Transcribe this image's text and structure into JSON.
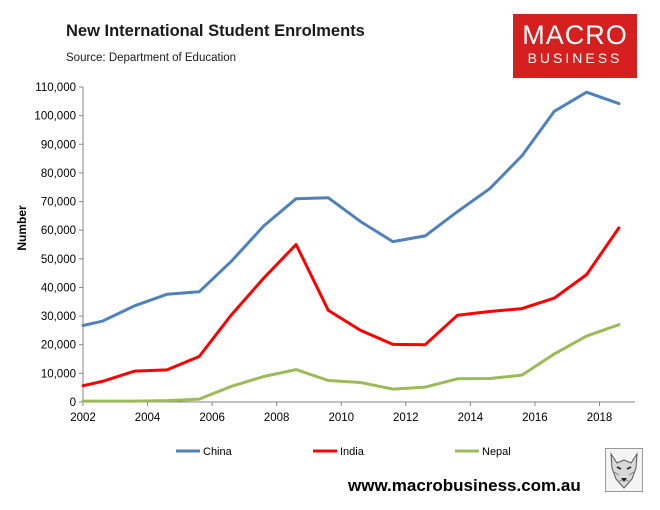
{
  "header": {
    "title": "New International Student Enrolments",
    "source": "Source: Department of Education"
  },
  "logo": {
    "line1": "MACRO",
    "line2": "BUSINESS",
    "color": "#d61f1f"
  },
  "footer": {
    "website": "www.macrobusiness.com.au"
  },
  "chart_data": {
    "type": "line",
    "title": "New International Student Enrolments",
    "xlabel": "",
    "ylabel": "Number",
    "xlim": [
      2002,
      2019.1
    ],
    "ylim": [
      0,
      110000
    ],
    "grid": false,
    "legend_position": "bottom",
    "x_ticks": [
      2002,
      2004,
      2006,
      2008,
      2010,
      2012,
      2014,
      2016,
      2018
    ],
    "x_tick_labels": [
      "2002",
      "2004",
      "2006",
      "2008",
      "2010",
      "2012",
      "2014",
      "2016",
      "2018"
    ],
    "y_ticks": [
      0,
      10000,
      20000,
      30000,
      40000,
      50000,
      60000,
      70000,
      80000,
      90000,
      100000,
      110000
    ],
    "y_tick_labels": [
      "0",
      "10,000",
      "20,000",
      "30,000",
      "40,000",
      "50,000",
      "60,000",
      "70,000",
      "80,000",
      "90,000",
      "100,000",
      "110,000"
    ],
    "x": [
      2002,
      2002.6,
      2003.6,
      2004.6,
      2005.6,
      2006.6,
      2007.6,
      2008.6,
      2009.6,
      2010.6,
      2011.6,
      2012.6,
      2013.6,
      2014.6,
      2015.6,
      2016.6,
      2017.6,
      2018.6
    ],
    "series": [
      {
        "name": "China",
        "color": "#4f81bd",
        "values": [
          26700,
          28200,
          33600,
          37600,
          38500,
          49200,
          61500,
          71000,
          71300,
          63000,
          56000,
          58000,
          66500,
          74500,
          86000,
          101500,
          108200,
          104200
        ]
      },
      {
        "name": "India",
        "color": "#ff0000",
        "values": [
          5700,
          7200,
          10800,
          11200,
          15900,
          30500,
          43300,
          55000,
          32000,
          25000,
          20100,
          20000,
          30300,
          31600,
          32600,
          36300,
          44500,
          60800
        ]
      },
      {
        "name": "Nepal",
        "color": "#9bbb59",
        "values": [
          300,
          300,
          300,
          500,
          1000,
          5500,
          8900,
          11300,
          7500,
          6800,
          4500,
          5200,
          8100,
          8200,
          9400,
          16800,
          23000,
          27000
        ]
      }
    ]
  }
}
